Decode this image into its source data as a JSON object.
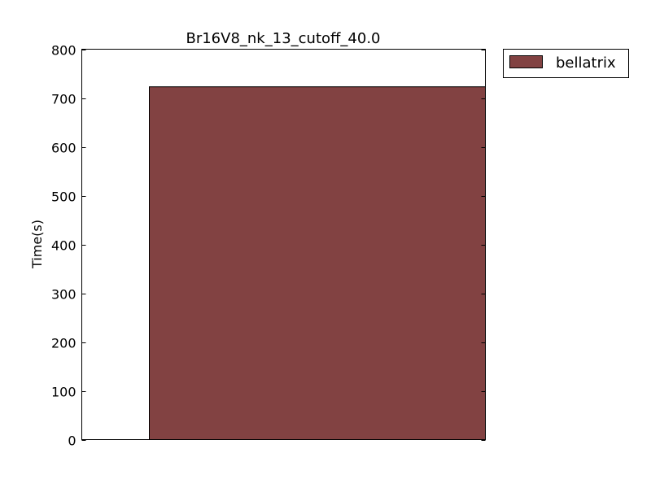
{
  "chart_data": {
    "type": "bar",
    "title": "Br16V8_nk_13_cutoff_40.0",
    "xlabel": "",
    "ylabel": "Time(s)",
    "ylim": [
      0,
      800
    ],
    "yticks": [
      0,
      100,
      200,
      300,
      400,
      500,
      600,
      700,
      800
    ],
    "categories": [
      ""
    ],
    "series": [
      {
        "name": "bellatrix",
        "values": [
          723
        ],
        "color": "#824242"
      }
    ],
    "grid": false,
    "legend_position": "outside-top-right"
  }
}
